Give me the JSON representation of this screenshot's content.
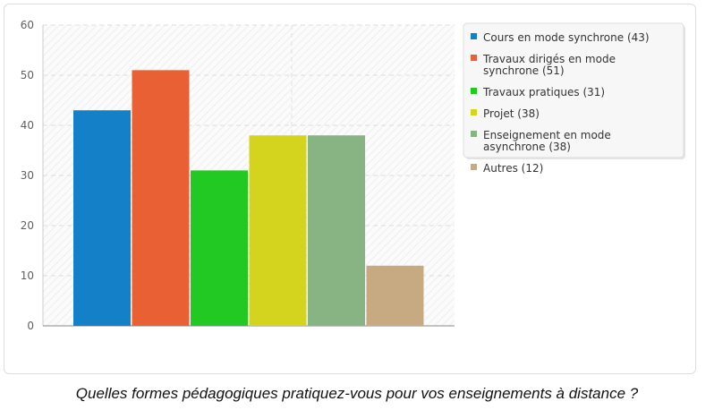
{
  "caption": "Quelles formes pédagogiques pratiquez-vous pour vos enseignements à distance ?",
  "chart_data": {
    "type": "bar",
    "title": "",
    "xlabel": "",
    "ylabel": "",
    "ylim": [
      0,
      60
    ],
    "yticks": [
      0,
      10,
      20,
      30,
      40,
      50,
      60
    ],
    "grid": true,
    "legend_position": "right",
    "categories": [
      "Cours en mode synchrone",
      "Travaux dirigés en mode synchrone",
      "Travaux pratiques",
      "Projet",
      "Enseignement en mode asynchrone",
      "Autres"
    ],
    "values": [
      43,
      51,
      31,
      38,
      38,
      12
    ],
    "colors": [
      "#1480c8",
      "#e86033",
      "#22c922",
      "#d4d41e",
      "#88b383",
      "#c8aa82"
    ],
    "legend": [
      {
        "lines": [
          "Cours en mode synchrone (43)"
        ],
        "color": "#1480c8"
      },
      {
        "lines": [
          "Travaux dirigés en mode",
          "synchrone (51)"
        ],
        "color": "#e86033"
      },
      {
        "lines": [
          "Travaux pratiques (31)"
        ],
        "color": "#22c922"
      },
      {
        "lines": [
          "Projet (38)"
        ],
        "color": "#d4d41e"
      },
      {
        "lines": [
          "Enseignement en mode",
          "asynchrone (38)"
        ],
        "color": "#88b383"
      },
      {
        "lines": [
          "Autres (12)"
        ],
        "color": "#c8aa82"
      }
    ]
  }
}
